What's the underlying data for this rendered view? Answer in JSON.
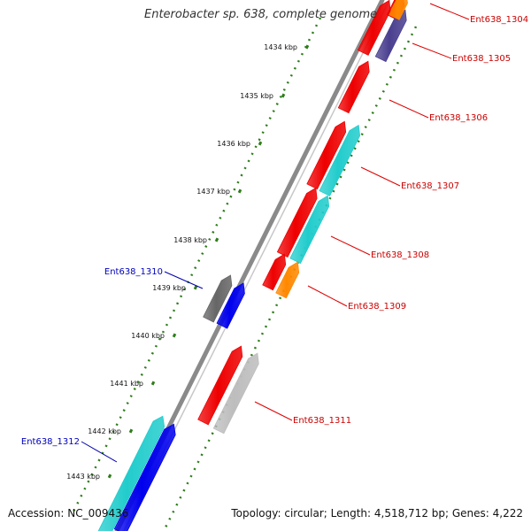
{
  "title": "Enterobacter sp. 638, complete genome",
  "accession_text": "Accession: NC_009436",
  "topology_text": "Topology: circular; Length: 4,518,712 bp; Genes: 4,222",
  "colors": {
    "backbone": "#8a8a8a",
    "tick": "#2e7d1a",
    "label_forward": "#cc0000",
    "label_reverse": "#0000bb",
    "callout_forward": "#dd0000",
    "callout_reverse": "#0000aa",
    "red": "#ee0000",
    "cyan": "#22cccc",
    "orange": "#ff8800",
    "navy": "#4a3f8f",
    "blue": "#0000ee",
    "gray": "#666666",
    "lightgray": "#bdbdbd"
  },
  "ticks": [
    "1434 kbp",
    "1435 kbp",
    "1436 kbp",
    "1437 kbp",
    "1438 kbp",
    "1439 kbp",
    "1440 kbp",
    "1441 kbp",
    "1442 kbp",
    "1443 kbp"
  ],
  "genes_forward": [
    {
      "label": "Ent638_1304",
      "color": "orange"
    },
    {
      "label": "Ent638_1305",
      "color": "navy"
    },
    {
      "label": "Ent638_1306",
      "color": "red"
    },
    {
      "label": "Ent638_1307",
      "color": "cyan"
    },
    {
      "label": "Ent638_1308",
      "color": "cyan"
    },
    {
      "label": "Ent638_1309",
      "color": "orange"
    },
    {
      "label": "Ent638_1311",
      "color": "lightgray"
    }
  ],
  "genes_reverse": [
    {
      "label": "Ent638_1310",
      "color": "blue"
    },
    {
      "label": "Ent638_1312",
      "color": "blue"
    }
  ],
  "extra_features": [
    {
      "color": "red"
    },
    {
      "color": "red"
    },
    {
      "color": "red"
    },
    {
      "color": "red"
    },
    {
      "color": "red"
    },
    {
      "color": "red"
    },
    {
      "color": "gray"
    },
    {
      "color": "cyan"
    }
  ]
}
